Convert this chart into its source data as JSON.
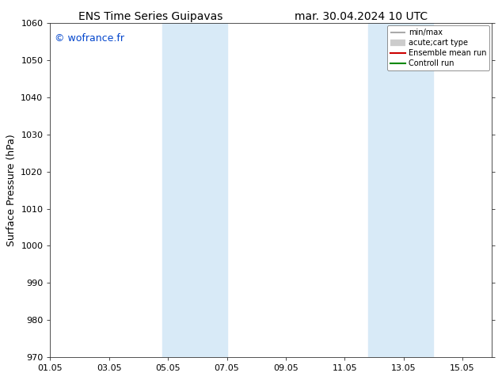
{
  "title_left": "ENS Time Series Guipavas",
  "title_right": "mar. 30.04.2024 10 UTC",
  "ylabel": "Surface Pressure (hPa)",
  "ylim": [
    970,
    1060
  ],
  "yticks": [
    970,
    980,
    990,
    1000,
    1010,
    1020,
    1030,
    1040,
    1050,
    1060
  ],
  "xlim": [
    0,
    15
  ],
  "xtick_labels": [
    "01.05",
    "03.05",
    "05.05",
    "07.05",
    "09.05",
    "11.05",
    "13.05",
    "15.05"
  ],
  "xtick_positions": [
    0,
    2,
    4,
    6,
    8,
    10,
    12,
    14
  ],
  "shaded_regions": [
    {
      "start": 3.8,
      "end": 6.0
    },
    {
      "start": 10.8,
      "end": 13.0
    }
  ],
  "shaded_color": "#d8eaf7",
  "watermark": "© wofrance.fr",
  "watermark_color": "#0044cc",
  "legend_items": [
    {
      "label": "min/max",
      "color": "#aaaaaa",
      "lw": 1.5
    },
    {
      "label": "acute;cart type",
      "color": "#cccccc",
      "lw": 6
    },
    {
      "label": "Ensemble mean run",
      "color": "#cc0000",
      "lw": 1.5
    },
    {
      "label": "Controll run",
      "color": "#008800",
      "lw": 1.5
    }
  ],
  "background_color": "#ffffff",
  "plot_bg_color": "#ffffff",
  "spine_color": "#333333",
  "title_fontsize": 10,
  "ylabel_fontsize": 9,
  "tick_fontsize": 8,
  "legend_fontsize": 7,
  "watermark_fontsize": 9
}
